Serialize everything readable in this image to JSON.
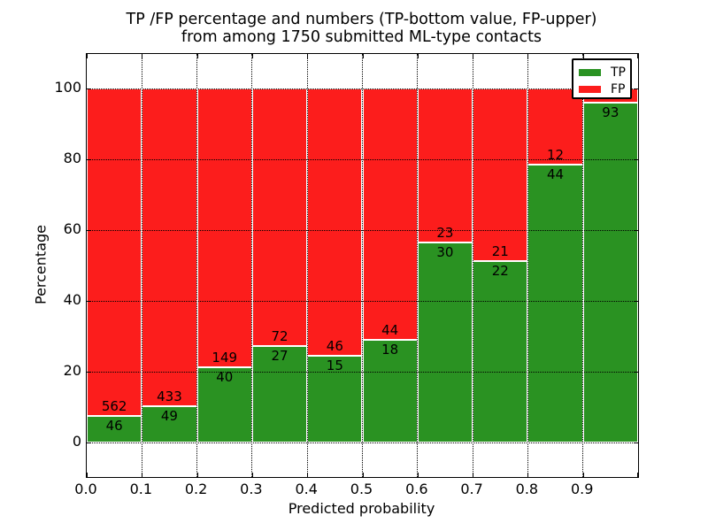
{
  "figure": {
    "title_line1": "TP /FP percentage and numbers (TP-bottom value, FP-upper)",
    "title_line2": "from among 1750 submitted ML-type contacts",
    "xlabel": "Predicted probability",
    "ylabel": "Percentage"
  },
  "legend": {
    "position": "upper right",
    "entries": [
      {
        "label": "TP",
        "color": "#2a9222"
      },
      {
        "label": "FP",
        "color": "#fc1d1c"
      }
    ]
  },
  "chart_data": {
    "type": "bar",
    "stacked": true,
    "title": "TP /FP percentage and numbers (TP-bottom value, FP-upper) from among 1750 submitted ML-type contacts",
    "xlabel": "Predicted probability",
    "ylabel": "Percentage",
    "total_contacts": 1750,
    "bin_start": [
      0.0,
      0.1,
      0.2,
      0.3,
      0.4,
      0.5,
      0.6,
      0.7,
      0.8,
      0.9
    ],
    "bin_width": 0.1,
    "series": [
      {
        "name": "TP",
        "color": "#2a9222",
        "counts": [
          46,
          49,
          40,
          27,
          15,
          18,
          30,
          22,
          44,
          93
        ]
      },
      {
        "name": "FP",
        "color": "#fc1d1c",
        "counts": [
          562,
          433,
          149,
          72,
          46,
          44,
          23,
          21,
          12,
          4
        ]
      }
    ],
    "tp_percent": [
      7.57,
      10.17,
      21.16,
      27.27,
      24.59,
      29.03,
      56.6,
      51.16,
      78.57,
      95.88
    ],
    "bar_value_labels": {
      "tp": [
        "46",
        "49",
        "40",
        "27",
        "15",
        "18",
        "30",
        "22",
        "44",
        "93"
      ],
      "fp": [
        "562",
        "433",
        "149",
        "72",
        "46",
        "44",
        "23",
        "21",
        "12",
        ""
      ]
    },
    "xticks": [
      "0.0",
      "0.1",
      "0.2",
      "0.3",
      "0.4",
      "0.5",
      "0.6",
      "0.7",
      "0.8",
      "0.9"
    ],
    "yticks": [
      0,
      20,
      40,
      60,
      80,
      100
    ],
    "xlim": [
      0.0,
      1.0
    ],
    "ylim": [
      -9.75,
      109.75
    ],
    "grid": true,
    "grid_style": "dotted",
    "legend_position": "upper right"
  }
}
